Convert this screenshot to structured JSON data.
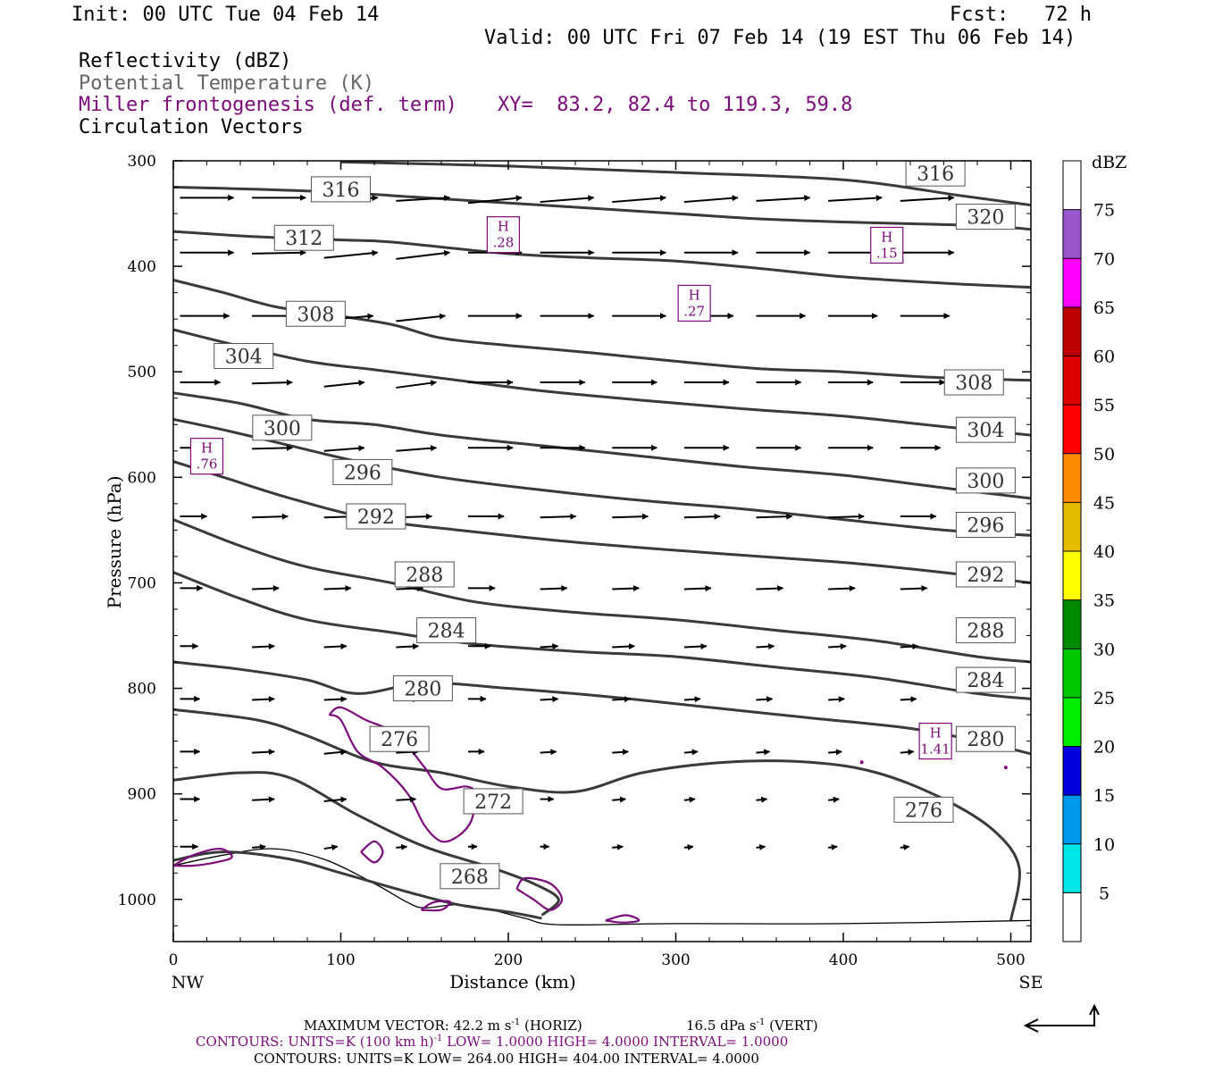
{
  "header": {
    "init": "Init: 00 UTC Tue 04 Feb 14",
    "fcst": "Fcst:   72 h",
    "valid": "Valid: 00 UTC Fri 07 Feb 14 (19 EST Thu 06 Feb 14)",
    "field1": "Reflectivity (dBZ)",
    "field2": "Potential Temperature (K)",
    "field3": "Miller frontogenesis (def. term)",
    "xy": "XY=  83.2, 82.4 to 119.3, 59.8",
    "field4": "Circulation Vectors"
  },
  "colors": {
    "theta": "#3a3a3a",
    "fronto": "#7b0a7b",
    "gray_text": "#555555"
  },
  "colorbar": {
    "unit": "dBZ",
    "levels": [
      5,
      10,
      15,
      20,
      25,
      30,
      35,
      40,
      45,
      50,
      55,
      60,
      65,
      70,
      75
    ],
    "colors": [
      "#ffffff",
      "#00e5e5",
      "#0099ee",
      "#0000dd",
      "#00ee00",
      "#00c800",
      "#008a00",
      "#ffff00",
      "#e5bb00",
      "#ff8c00",
      "#ff0000",
      "#dd0000",
      "#bb0000",
      "#ff00ff",
      "#9955cc",
      "#ffffff"
    ]
  },
  "footer": {
    "max_vector": "MAXIMUM VECTOR:  42.2 m s",
    "max_vector_unit": "(HORIZ)",
    "vert": "16.5 dPa s",
    "vert_unit": "(VERT)",
    "fronto_contours": "CONTOURS:  UNITS=K (100 km h)",
    "fronto_contours_rest": "LOW=   1.0000      HIGH=   4.0000      INTERVAL=    1.0000",
    "theta_contours": "CONTOURS:  UNITS=K  LOW=   264.00       HIGH=   404.00       INTERVAL=     4.0000"
  },
  "chart_data": {
    "type": "cross-section",
    "xlabel": "Distance (km)",
    "ylabel": "Pressure (hPa)",
    "xlim": [
      0,
      512
    ],
    "ylim": [
      1040,
      300
    ],
    "x_ticks": [
      0,
      100,
      200,
      300,
      400,
      500
    ],
    "y_ticks": [
      300,
      400,
      500,
      600,
      700,
      800,
      900,
      1000
    ],
    "x_end_labels": [
      "NW",
      "SE"
    ],
    "theta_contours": [
      {
        "level": 316,
        "label": "316",
        "points": [
          [
            0,
            325
          ],
          [
            50,
            327
          ],
          [
            100,
            330
          ],
          [
            150,
            335
          ],
          [
            200,
            340
          ],
          [
            250,
            345
          ],
          [
            300,
            350
          ],
          [
            350,
            355
          ],
          [
            400,
            358
          ],
          [
            450,
            360
          ],
          [
            490,
            362
          ],
          [
            512,
            365
          ]
        ]
      },
      {
        "level": 320,
        "label": "320",
        "points": [
          [
            100,
            301
          ],
          [
            200,
            305
          ],
          [
            300,
            311
          ],
          [
            400,
            318
          ],
          [
            470,
            333
          ],
          [
            512,
            342
          ]
        ]
      },
      {
        "level": 312,
        "label": "312",
        "points": [
          [
            0,
            367
          ],
          [
            50,
            372
          ],
          [
            100,
            375
          ],
          [
            130,
            377
          ],
          [
            200,
            388
          ],
          [
            250,
            392
          ],
          [
            300,
            395
          ],
          [
            350,
            402
          ],
          [
            400,
            410
          ],
          [
            460,
            416
          ],
          [
            512,
            420
          ]
        ]
      },
      {
        "level": 308,
        "label": "308",
        "points": [
          [
            0,
            413
          ],
          [
            30,
            425
          ],
          [
            60,
            438
          ],
          [
            90,
            445
          ],
          [
            130,
            455
          ],
          [
            160,
            468
          ],
          [
            200,
            475
          ],
          [
            250,
            482
          ],
          [
            300,
            490
          ],
          [
            350,
            497
          ],
          [
            400,
            500
          ],
          [
            450,
            505
          ],
          [
            512,
            508
          ]
        ]
      },
      {
        "level": 304,
        "label": "304",
        "points": [
          [
            0,
            460
          ],
          [
            30,
            472
          ],
          [
            80,
            490
          ],
          [
            120,
            498
          ],
          [
            170,
            508
          ],
          [
            220,
            518
          ],
          [
            280,
            527
          ],
          [
            340,
            535
          ],
          [
            400,
            542
          ],
          [
            460,
            552
          ],
          [
            512,
            560
          ]
        ]
      },
      {
        "level": 300,
        "label": "300",
        "points": [
          [
            0,
            520
          ],
          [
            40,
            530
          ],
          [
            80,
            545
          ],
          [
            120,
            550
          ],
          [
            160,
            560
          ],
          [
            220,
            570
          ],
          [
            280,
            580
          ],
          [
            340,
            590
          ],
          [
            400,
            598
          ],
          [
            460,
            610
          ],
          [
            512,
            620
          ]
        ]
      },
      {
        "level": 296,
        "label": "296",
        "points": [
          [
            0,
            545
          ],
          [
            30,
            555
          ],
          [
            70,
            570
          ],
          [
            110,
            585
          ],
          [
            160,
            600
          ],
          [
            220,
            612
          ],
          [
            280,
            622
          ],
          [
            340,
            630
          ],
          [
            400,
            640
          ],
          [
            460,
            650
          ],
          [
            512,
            655
          ]
        ]
      },
      {
        "level": 292,
        "label": "292",
        "points": [
          [
            0,
            585
          ],
          [
            30,
            600
          ],
          [
            70,
            620
          ],
          [
            120,
            640
          ],
          [
            170,
            650
          ],
          [
            230,
            660
          ],
          [
            290,
            668
          ],
          [
            350,
            675
          ],
          [
            410,
            682
          ],
          [
            470,
            692
          ],
          [
            512,
            700
          ]
        ]
      },
      {
        "level": 288,
        "label": "288",
        "points": [
          [
            0,
            640
          ],
          [
            40,
            665
          ],
          [
            80,
            685
          ],
          [
            130,
            700
          ],
          [
            180,
            718
          ],
          [
            240,
            728
          ],
          [
            300,
            735
          ],
          [
            360,
            745
          ],
          [
            420,
            755
          ],
          [
            480,
            770
          ],
          [
            512,
            775
          ]
        ]
      },
      {
        "level": 284,
        "label": "284",
        "points": [
          [
            0,
            690
          ],
          [
            40,
            715
          ],
          [
            80,
            735
          ],
          [
            130,
            747
          ],
          [
            180,
            758
          ],
          [
            240,
            765
          ],
          [
            300,
            770
          ],
          [
            360,
            780
          ],
          [
            420,
            790
          ],
          [
            480,
            805
          ],
          [
            512,
            810
          ]
        ]
      },
      {
        "level": 280,
        "label": "280",
        "points": [
          [
            0,
            775
          ],
          [
            40,
            782
          ],
          [
            80,
            792
          ],
          [
            110,
            805
          ],
          [
            150,
            795
          ],
          [
            200,
            800
          ],
          [
            260,
            808
          ],
          [
            320,
            818
          ],
          [
            380,
            828
          ],
          [
            440,
            838
          ],
          [
            480,
            850
          ],
          [
            512,
            862
          ]
        ]
      },
      {
        "level": 276,
        "label": "276",
        "points": [
          [
            0,
            820
          ],
          [
            50,
            830
          ],
          [
            80,
            845
          ],
          [
            120,
            870
          ],
          [
            160,
            880
          ],
          [
            200,
            893
          ],
          [
            240,
            898
          ],
          [
            280,
            880
          ],
          [
            330,
            870
          ],
          [
            380,
            870
          ],
          [
            420,
            880
          ],
          [
            460,
            905
          ],
          [
            490,
            935
          ],
          [
            505,
            970
          ],
          [
            500,
            1020
          ]
        ]
      },
      {
        "level": 272,
        "label": "272",
        "points": [
          [
            0,
            887
          ],
          [
            40,
            880
          ],
          [
            70,
            885
          ],
          [
            110,
            920
          ],
          [
            150,
            950
          ],
          [
            190,
            970
          ],
          [
            215,
            985
          ],
          [
            230,
            1000
          ],
          [
            220,
            1015
          ]
        ]
      },
      {
        "level": 268,
        "label": "268",
        "points": [
          [
            0,
            963
          ],
          [
            30,
            955
          ],
          [
            70,
            962
          ],
          [
            100,
            975
          ],
          [
            140,
            993
          ],
          [
            170,
            1005
          ],
          [
            200,
            1012
          ],
          [
            220,
            1018
          ]
        ]
      }
    ],
    "fronto_maxima": [
      {
        "label": "H",
        "value": ".28",
        "x": 197,
        "p": 370
      },
      {
        "label": "H",
        "value": ".15",
        "x": 426,
        "p": 380
      },
      {
        "label": "H",
        "value": ".27",
        "x": 311,
        "p": 435
      },
      {
        "label": "H",
        "value": ".76",
        "x": 20,
        "p": 580
      },
      {
        "label": "H",
        "value": "1.41",
        "x": 455,
        "p": 850
      }
    ]
  }
}
